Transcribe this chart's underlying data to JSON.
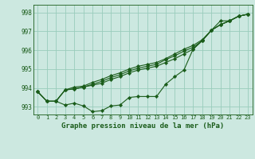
{
  "title": "Graphe pression niveau de la mer (hPa)",
  "bg_color": "#cce8e0",
  "grid_color": "#99ccbb",
  "line_color": "#1a5c1a",
  "xlim": [
    -0.5,
    23.5
  ],
  "ylim": [
    992.6,
    998.4
  ],
  "yticks": [
    993,
    994,
    995,
    996,
    997,
    998
  ],
  "xticks": [
    0,
    1,
    2,
    3,
    4,
    5,
    6,
    7,
    8,
    9,
    10,
    11,
    12,
    13,
    14,
    15,
    16,
    17,
    18,
    19,
    20,
    21,
    22,
    23
  ],
  "series": [
    [
      993.8,
      993.3,
      993.3,
      993.1,
      993.2,
      993.05,
      992.75,
      992.8,
      993.05,
      993.1,
      993.5,
      993.55,
      993.55,
      993.55,
      994.2,
      994.6,
      994.95,
      996.05,
      996.5,
      997.05,
      997.55,
      997.55,
      997.8,
      997.9
    ],
    [
      993.8,
      993.3,
      993.3,
      993.9,
      993.95,
      994.05,
      994.15,
      994.25,
      994.45,
      994.6,
      994.8,
      994.95,
      995.05,
      995.15,
      995.35,
      995.55,
      995.8,
      996.05,
      996.5,
      997.05,
      997.35,
      997.55,
      997.8,
      997.9
    ],
    [
      993.8,
      993.3,
      993.3,
      993.9,
      993.95,
      994.05,
      994.2,
      994.35,
      994.55,
      994.7,
      994.9,
      995.05,
      995.15,
      995.25,
      995.5,
      995.7,
      995.95,
      996.15,
      996.5,
      997.05,
      997.35,
      997.55,
      997.8,
      997.9
    ],
    [
      993.8,
      993.3,
      993.3,
      993.9,
      994.05,
      994.1,
      994.3,
      994.45,
      994.65,
      994.8,
      995.0,
      995.15,
      995.25,
      995.35,
      995.55,
      995.8,
      996.05,
      996.25,
      996.55,
      997.05,
      997.35,
      997.55,
      997.8,
      997.9
    ]
  ],
  "figsize": [
    3.2,
    2.0
  ],
  "dpi": 100,
  "title_fontsize": 6.5,
  "tick_fontsize": 5.5,
  "xtick_fontsize": 5.0,
  "linewidth": 0.8,
  "markersize": 2.2
}
